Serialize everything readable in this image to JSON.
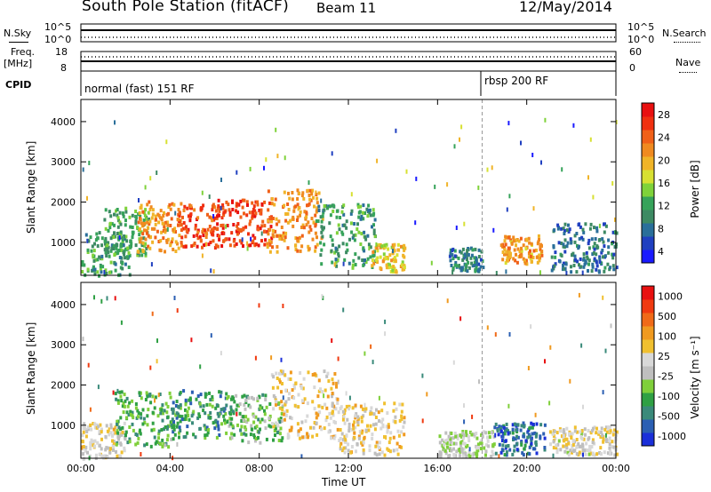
{
  "header": {
    "title": "South Pole Station (fitACF)",
    "beam": "Beam 11",
    "date": "12/May/2014"
  },
  "top_panels": {
    "nsky_label": "N.Sky",
    "nsearch_label": "N.Search",
    "nsky_ticks": [
      "10^5",
      "10^0"
    ],
    "nsearch_ticks": [
      "10^5",
      "10^0"
    ],
    "freq_label_line1": "Freq.",
    "freq_label_line2": "[MHz]",
    "freq_ticks": [
      "18",
      "8"
    ],
    "nave_label": "Nave",
    "nave_ticks": [
      "60",
      "0"
    ],
    "cpid_label": "CPID",
    "cpid_segments": [
      {
        "name": "normal (fast) 151 RF",
        "start_hour": 0,
        "end_hour": 18
      },
      {
        "name": "rbsp 200 RF",
        "start_hour": 18,
        "end_hour": 24
      }
    ]
  },
  "colorbars": {
    "power": {
      "label": "Power [dB]",
      "ticks": [
        "28",
        "24",
        "20",
        "16",
        "12",
        "8",
        "4"
      ],
      "colors": [
        "#1a1aff",
        "#2040c0",
        "#2a6f9a",
        "#3d8a63",
        "#36a35a",
        "#7fd23a",
        "#d7e032",
        "#f0b428",
        "#f08a20",
        "#f06018",
        "#f03010",
        "#e81010"
      ]
    },
    "velocity": {
      "label": "Velocity [m s⁻¹]",
      "ticks": [
        "1000",
        "500",
        "100",
        "25",
        "-25",
        "-100",
        "-500",
        "-1000"
      ],
      "colors": [
        "#1a2fd9",
        "#2b5fb3",
        "#3a8a7a",
        "#2fa044",
        "#7fcf3a",
        "#bfbfbf",
        "#d8d8d8",
        "#f0c030",
        "#f09a20",
        "#f06a18",
        "#f03a10",
        "#e81010"
      ]
    }
  },
  "axes": {
    "ylabel": "Slant Range [km]",
    "xlabel": "Time UT",
    "xticks": [
      "00:00",
      "04:00",
      "08:00",
      "12:00",
      "16:00",
      "20:00",
      "00:00"
    ],
    "yticks": [
      "1000",
      "2000",
      "3000",
      "4000"
    ]
  },
  "chart_data": [
    {
      "type": "heatmap",
      "title": "",
      "ylabel": "Slant Range [km]",
      "xlabel": "",
      "xlim_hours": [
        0,
        24
      ],
      "ylim": [
        180,
        4550
      ],
      "zlabel": "Power [dB]",
      "zlim": [
        0,
        30
      ],
      "regions": [
        {
          "t0": 0.0,
          "t1": 2.2,
          "r0": 200,
          "r1": 1300,
          "value": 10
        },
        {
          "t0": 1.0,
          "t1": 3.0,
          "r0": 700,
          "r1": 1900,
          "value": 11
        },
        {
          "t0": 2.5,
          "t1": 4.5,
          "r0": 800,
          "r1": 2050,
          "value": 21
        },
        {
          "t0": 4.3,
          "t1": 6.2,
          "r0": 900,
          "r1": 2000,
          "value": 25
        },
        {
          "t0": 6.0,
          "t1": 8.5,
          "r0": 950,
          "r1": 2100,
          "value": 26
        },
        {
          "t0": 8.3,
          "t1": 10.8,
          "r0": 800,
          "r1": 2350,
          "value": 21
        },
        {
          "t0": 10.5,
          "t1": 13.2,
          "r0": 400,
          "r1": 2000,
          "value": 10
        },
        {
          "t0": 13.0,
          "t1": 14.5,
          "r0": 300,
          "r1": 1000,
          "value": 18
        },
        {
          "t0": 16.5,
          "t1": 18.0,
          "r0": 300,
          "r1": 900,
          "value": 8
        },
        {
          "t0": 18.8,
          "t1": 20.7,
          "r0": 500,
          "r1": 1200,
          "value": 20
        },
        {
          "t0": 21.0,
          "t1": 24.0,
          "r0": 300,
          "r1": 1500,
          "value": 7
        }
      ]
    },
    {
      "type": "heatmap",
      "title": "",
      "ylabel": "Slant Range [km]",
      "xlabel": "Time UT",
      "xlim_hours": [
        0,
        24
      ],
      "ylim": [
        180,
        4550
      ],
      "zlabel": "Velocity [m s⁻¹]",
      "zlim": [
        -1000,
        1000
      ],
      "regions": [
        {
          "t0": 0.0,
          "t1": 2.0,
          "r0": 200,
          "r1": 1100,
          "value": 90
        },
        {
          "t0": 1.5,
          "t1": 4.0,
          "r0": 500,
          "r1": 1900,
          "value": -400
        },
        {
          "t0": 4.0,
          "t1": 6.5,
          "r0": 700,
          "r1": 1950,
          "value": -500
        },
        {
          "t0": 6.5,
          "t1": 9.0,
          "r0": 600,
          "r1": 1800,
          "value": -300
        },
        {
          "t0": 8.5,
          "t1": 11.5,
          "r0": 700,
          "r1": 2400,
          "value": 200
        },
        {
          "t0": 11.5,
          "t1": 14.5,
          "r0": 300,
          "r1": 1600,
          "value": 150
        },
        {
          "t0": 16.0,
          "t1": 18.5,
          "r0": 250,
          "r1": 900,
          "value": -90
        },
        {
          "t0": 18.5,
          "t1": 20.8,
          "r0": 300,
          "r1": 1100,
          "value": -700
        },
        {
          "t0": 21.0,
          "t1": 24.0,
          "r0": 300,
          "r1": 1000,
          "value": 60
        }
      ]
    }
  ]
}
